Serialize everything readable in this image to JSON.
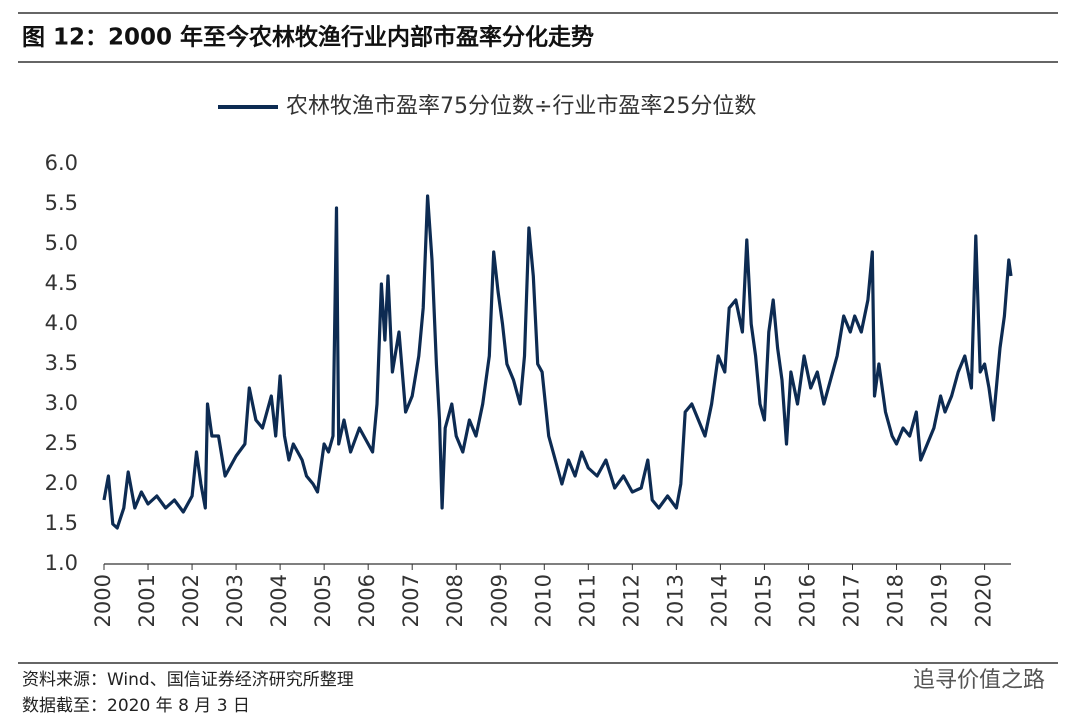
{
  "chart_data": {
    "type": "line",
    "title": "图 12：2000 年至今农林牧渔行业内部市盈率分化走势",
    "source": "资料来源：Wind、国信证券经济研究所整理",
    "date_note": "数据截至：2020 年 8 月 3 日",
    "watermark": "追寻价值之路",
    "legend": "top",
    "x": [
      2000.0,
      2000.1,
      2000.2,
      2000.3,
      2000.45,
      2000.55,
      2000.7,
      2000.85,
      2001.0,
      2001.2,
      2001.4,
      2001.6,
      2001.8,
      2002.0,
      2002.1,
      2002.2,
      2002.3,
      2002.35,
      2002.45,
      2002.6,
      2002.75,
      2003.0,
      2003.2,
      2003.3,
      2003.45,
      2003.6,
      2003.8,
      2003.9,
      2004.0,
      2004.1,
      2004.2,
      2004.3,
      2004.5,
      2004.6,
      2004.75,
      2004.85,
      2005.0,
      2005.1,
      2005.2,
      2005.28,
      2005.33,
      2005.45,
      2005.6,
      2005.8,
      2006.0,
      2006.1,
      2006.2,
      2006.3,
      2006.38,
      2006.45,
      2006.55,
      2006.7,
      2006.85,
      2007.0,
      2007.15,
      2007.25,
      2007.35,
      2007.45,
      2007.55,
      2007.62,
      2007.68,
      2007.75,
      2007.9,
      2008.0,
      2008.15,
      2008.3,
      2008.45,
      2008.6,
      2008.75,
      2008.85,
      2008.95,
      2009.05,
      2009.15,
      2009.3,
      2009.45,
      2009.55,
      2009.65,
      2009.75,
      2009.85,
      2009.95,
      2010.1,
      2010.25,
      2010.4,
      2010.55,
      2010.7,
      2010.85,
      2011.0,
      2011.2,
      2011.4,
      2011.6,
      2011.8,
      2012.0,
      2012.2,
      2012.35,
      2012.45,
      2012.6,
      2012.8,
      2013.0,
      2013.1,
      2013.2,
      2013.35,
      2013.5,
      2013.65,
      2013.8,
      2013.95,
      2014.1,
      2014.2,
      2014.35,
      2014.5,
      2014.6,
      2014.7,
      2014.8,
      2014.9,
      2015.0,
      2015.1,
      2015.2,
      2015.3,
      2015.4,
      2015.5,
      2015.6,
      2015.75,
      2015.9,
      2016.05,
      2016.2,
      2016.35,
      2016.5,
      2016.65,
      2016.8,
      2016.95,
      2017.05,
      2017.2,
      2017.35,
      2017.45,
      2017.5,
      2017.6,
      2017.75,
      2017.9,
      2018.0,
      2018.15,
      2018.3,
      2018.45,
      2018.55,
      2018.7,
      2018.85,
      2019.0,
      2019.1,
      2019.25,
      2019.4,
      2019.55,
      2019.7,
      2019.8,
      2019.9,
      2020.0,
      2020.1,
      2020.2,
      2020.35,
      2020.45,
      2020.55,
      2020.6
    ],
    "series": [
      {
        "name": "农林牧渔市盈率75分位数÷行业市盈率25分位数",
        "color": "#0d2b52",
        "values": [
          1.8,
          2.1,
          1.5,
          1.45,
          1.7,
          2.15,
          1.7,
          1.9,
          1.75,
          1.85,
          1.7,
          1.8,
          1.65,
          1.85,
          2.4,
          2.0,
          1.7,
          3.0,
          2.6,
          2.6,
          2.1,
          2.35,
          2.5,
          3.2,
          2.8,
          2.7,
          3.1,
          2.6,
          3.35,
          2.6,
          2.3,
          2.5,
          2.3,
          2.1,
          2.0,
          1.9,
          2.5,
          2.4,
          2.6,
          5.45,
          2.5,
          2.8,
          2.4,
          2.7,
          2.5,
          2.4,
          3.0,
          4.5,
          3.8,
          4.6,
          3.4,
          3.9,
          2.9,
          3.1,
          3.6,
          4.2,
          5.6,
          4.8,
          3.5,
          2.8,
          1.7,
          2.7,
          3.0,
          2.6,
          2.4,
          2.8,
          2.6,
          3.0,
          3.6,
          4.9,
          4.4,
          4.0,
          3.5,
          3.3,
          3.0,
          3.6,
          5.2,
          4.6,
          3.5,
          3.4,
          2.6,
          2.3,
          2.0,
          2.3,
          2.1,
          2.4,
          2.2,
          2.1,
          2.3,
          1.95,
          2.1,
          1.9,
          1.95,
          2.3,
          1.8,
          1.7,
          1.85,
          1.7,
          2.0,
          2.9,
          3.0,
          2.8,
          2.6,
          3.0,
          3.6,
          3.4,
          4.2,
          4.3,
          3.9,
          5.05,
          4.0,
          3.6,
          3.0,
          2.8,
          3.9,
          4.3,
          3.7,
          3.3,
          2.5,
          3.4,
          3.0,
          3.6,
          3.2,
          3.4,
          3.0,
          3.3,
          3.6,
          4.1,
          3.9,
          4.1,
          3.9,
          4.3,
          4.9,
          3.1,
          3.5,
          2.9,
          2.6,
          2.5,
          2.7,
          2.6,
          2.9,
          2.3,
          2.5,
          2.7,
          3.1,
          2.9,
          3.1,
          3.4,
          3.6,
          3.2,
          5.1,
          3.4,
          3.5,
          3.2,
          2.8,
          3.7,
          4.1,
          4.8,
          4.6
        ]
      }
    ],
    "xlim": [
      2000,
      2020.6
    ],
    "xticks": [
      2000,
      2001,
      2002,
      2003,
      2004,
      2005,
      2006,
      2007,
      2008,
      2009,
      2010,
      2011,
      2012,
      2013,
      2014,
      2015,
      2016,
      2017,
      2018,
      2019,
      2020
    ],
    "ylim": [
      1,
      6
    ],
    "yticks": [
      {
        "value": 1,
        "label": "1.0"
      },
      {
        "value": 1.5,
        "label": "1.5"
      },
      {
        "value": 2,
        "label": "2.0"
      },
      {
        "value": 2.5,
        "label": "2.5"
      },
      {
        "value": 3,
        "label": "3.0"
      },
      {
        "value": 3.5,
        "label": "3.5"
      },
      {
        "value": 4,
        "label": "4.0"
      },
      {
        "value": 4.5,
        "label": "4.5"
      },
      {
        "value": 5,
        "label": "5.0"
      },
      {
        "value": 5.5,
        "label": "5.5"
      },
      {
        "value": 6,
        "label": "6.0"
      }
    ]
  }
}
